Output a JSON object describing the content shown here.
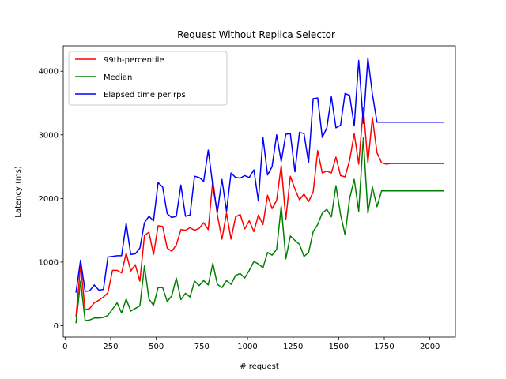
{
  "chart_data": {
    "type": "line",
    "title": "Request Without Replica Selector",
    "xlabel": "# request",
    "ylabel": "Latency (ms)",
    "xlim": [
      -10,
      2140
    ],
    "ylim": [
      -180,
      4400
    ],
    "xticks": [
      0,
      250,
      500,
      750,
      1000,
      1250,
      1500,
      1750,
      2000
    ],
    "yticks": [
      0,
      1000,
      2000,
      3000,
      4000
    ],
    "grid": false,
    "legend_position": "top-left",
    "x": [
      60,
      85,
      110,
      135,
      160,
      185,
      210,
      235,
      260,
      285,
      310,
      335,
      360,
      385,
      410,
      435,
      460,
      485,
      510,
      535,
      560,
      585,
      610,
      635,
      660,
      685,
      710,
      735,
      760,
      785,
      810,
      835,
      860,
      885,
      910,
      935,
      960,
      985,
      1010,
      1035,
      1060,
      1085,
      1110,
      1135,
      1160,
      1185,
      1210,
      1235,
      1260,
      1285,
      1310,
      1335,
      1360,
      1385,
      1410,
      1435,
      1460,
      1485,
      1510,
      1535,
      1560,
      1585,
      1610,
      1635,
      1660,
      1685,
      1710,
      1735,
      1760,
      1785,
      1810,
      1835,
      1860,
      1885,
      1910,
      1935,
      1960,
      1985,
      2010,
      2035,
      2060,
      2075
    ],
    "series": [
      {
        "name": "99th-percentile",
        "color": "#ff0000",
        "values": [
          130,
          950,
          250,
          270,
          360,
          400,
          450,
          520,
          870,
          870,
          830,
          1140,
          860,
          960,
          700,
          1420,
          1470,
          1120,
          1570,
          1560,
          1220,
          1170,
          1270,
          1510,
          1500,
          1540,
          1500,
          1530,
          1620,
          1510,
          2290,
          1740,
          1360,
          1770,
          1360,
          1710,
          1750,
          1520,
          1650,
          1480,
          1740,
          1590,
          2050,
          1840,
          1970,
          2520,
          1670,
          2350,
          2150,
          1980,
          2070,
          1950,
          2100,
          2750,
          2400,
          2430,
          2400,
          2650,
          2360,
          2340,
          2600,
          3020,
          2540,
          3430,
          2560,
          3270,
          2720,
          2560,
          2540,
          2550,
          2550,
          2550,
          2550,
          2550,
          2550,
          2550,
          2550,
          2550,
          2550,
          2550,
          2550,
          2550
        ]
      },
      {
        "name": "Median",
        "color": "#008000",
        "values": [
          40,
          700,
          80,
          90,
          120,
          120,
          130,
          160,
          260,
          360,
          200,
          420,
          230,
          270,
          310,
          940,
          420,
          320,
          600,
          600,
          380,
          470,
          750,
          410,
          510,
          450,
          700,
          630,
          710,
          640,
          980,
          650,
          600,
          710,
          650,
          790,
          820,
          750,
          870,
          1010,
          970,
          910,
          1150,
          1110,
          1200,
          1880,
          1050,
          1410,
          1340,
          1280,
          1090,
          1150,
          1480,
          1590,
          1770,
          1830,
          1710,
          2200,
          1750,
          1430,
          2000,
          2300,
          1800,
          2950,
          1770,
          2180,
          1870,
          2120,
          2120,
          2120,
          2120,
          2120,
          2120,
          2120,
          2120,
          2120,
          2120,
          2120,
          2120,
          2120,
          2120,
          2120
        ]
      },
      {
        "name": "Elapsed time per rps",
        "color": "#0000ff",
        "values": [
          520,
          1030,
          540,
          550,
          640,
          560,
          570,
          1080,
          1090,
          1100,
          1100,
          1610,
          1120,
          1130,
          1220,
          1620,
          1720,
          1650,
          2250,
          2180,
          1760,
          1700,
          1720,
          2210,
          1720,
          1740,
          2350,
          2330,
          2270,
          2760,
          2200,
          1780,
          2300,
          1800,
          2400,
          2330,
          2320,
          2360,
          2330,
          2450,
          1960,
          2960,
          2370,
          2500,
          3000,
          2580,
          3010,
          3020,
          2420,
          3040,
          3020,
          2560,
          3570,
          3580,
          2960,
          3110,
          3600,
          3110,
          3150,
          3650,
          3620,
          3140,
          4170,
          3180,
          4210,
          3640,
          3200,
          3200,
          3200,
          3200,
          3200,
          3200,
          3200,
          3200,
          3200,
          3200,
          3200,
          3200,
          3200,
          3200,
          3200,
          3200
        ]
      }
    ]
  }
}
